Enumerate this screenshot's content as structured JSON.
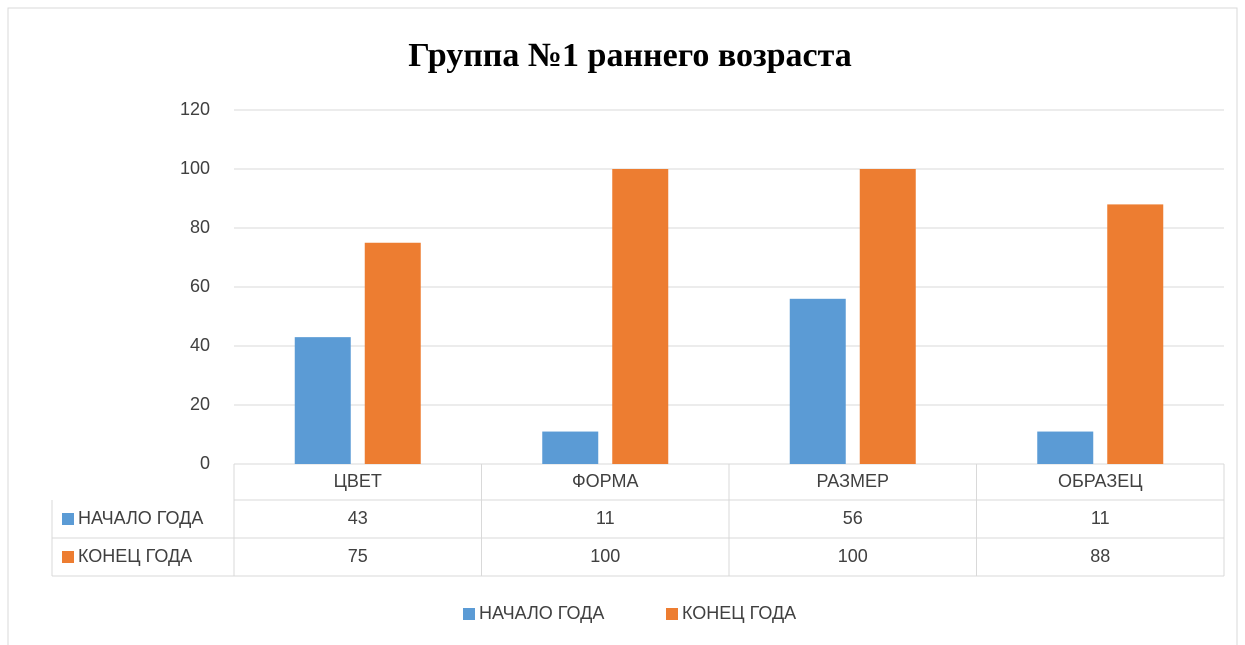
{
  "chart_data": {
    "type": "bar",
    "title": "Группа №1 раннего возраста",
    "categories": [
      "ЦВЕТ",
      "ФОРМА",
      "РАЗМЕР",
      "ОБРАЗЕЦ"
    ],
    "series": [
      {
        "name": "НАЧАЛО ГОДА",
        "color": "#5b9bd5",
        "values": [
          43,
          11,
          56,
          11
        ]
      },
      {
        "name": "КОНЕЦ ГОДА",
        "color": "#ed7d31",
        "values": [
          75,
          100,
          100,
          88
        ]
      }
    ],
    "ylim": [
      0,
      120
    ],
    "yticks": [
      0,
      20,
      40,
      60,
      80,
      100,
      120
    ],
    "grid": true,
    "legend": "bottom",
    "data_table": true
  }
}
